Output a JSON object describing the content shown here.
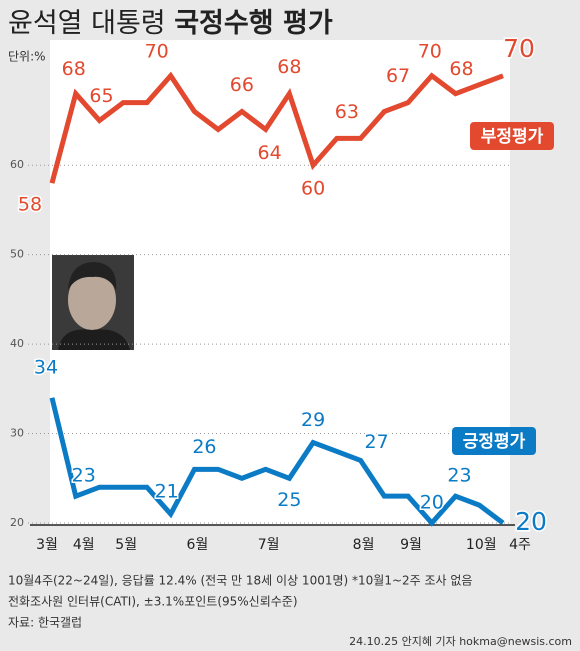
{
  "chart_data": {
    "type": "line",
    "title": [
      "윤석열 대통령",
      "국정수행 평가"
    ],
    "unit": "단위:%",
    "categories": [
      "3월",
      "4월",
      null,
      "5월",
      null,
      null,
      "6월",
      null,
      null,
      "7월",
      null,
      null,
      null,
      "8월",
      null,
      "9월",
      null,
      null,
      "10월",
      "4주"
    ],
    "series": [
      {
        "name": "부정평가",
        "color": "#e2492f",
        "values": [
          58,
          68,
          65,
          67,
          67,
          70,
          66,
          64,
          66,
          64,
          68,
          60,
          63,
          63,
          66,
          67,
          70,
          68,
          69,
          70
        ],
        "value_labels": [
          "58",
          "68",
          "65",
          null,
          null,
          "70",
          null,
          null,
          "66",
          "64",
          "68",
          "60",
          "63",
          null,
          null,
          "67",
          "70",
          "68",
          null,
          "70"
        ]
      },
      {
        "name": "긍정평가",
        "color": "#0b7bc6",
        "values": [
          34,
          23,
          24,
          24,
          24,
          21,
          26,
          26,
          25,
          26,
          25,
          29,
          28,
          27,
          23,
          23,
          20,
          23,
          22,
          20
        ],
        "value_labels": [
          "34",
          "23",
          null,
          null,
          null,
          "21",
          "26",
          null,
          null,
          null,
          "25",
          "29",
          null,
          "27",
          null,
          null,
          "20",
          "23",
          null,
          "20"
        ]
      }
    ],
    "ylim": [
      20,
      74
    ],
    "yticks": [
      20,
      30,
      40,
      50,
      60
    ],
    "grid": true,
    "notes": [
      "10월4주(22~24일), 응답률 12.4% (전국 만 18세 이상 1001명) *10월1~2주 조사 없음",
      "전화조사원 인터뷰(CATI), ±3.1%포인트(95%신뢰수준)",
      "자료: 한국갤럽"
    ],
    "credit": "24.10.25 안지혜 기자 hokma@newsis.com"
  }
}
